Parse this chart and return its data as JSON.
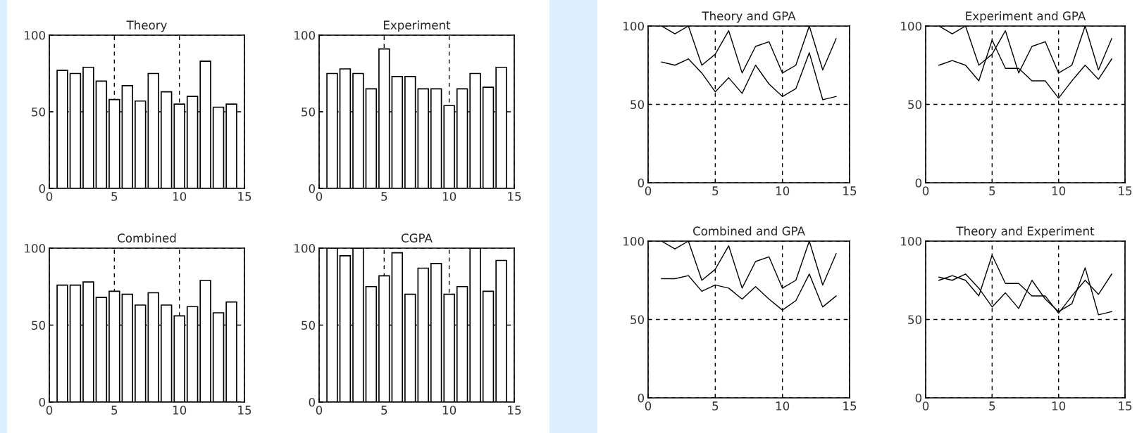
{
  "chart_data": [
    {
      "type": "bar",
      "title": "Theory",
      "x": [
        1,
        2,
        3,
        4,
        5,
        6,
        7,
        8,
        9,
        10,
        11,
        12,
        13,
        14
      ],
      "values": [
        77,
        75,
        79,
        70,
        58,
        67,
        57,
        75,
        63,
        55,
        60,
        83,
        53,
        55
      ],
      "color": "#ffffff",
      "xlim": [
        0,
        15
      ],
      "xticks": [
        0,
        5,
        10,
        15
      ],
      "ylim": [
        0,
        100
      ],
      "yticks": [
        0,
        50,
        100
      ],
      "grid": true
    },
    {
      "type": "bar",
      "title": "Experiment",
      "x": [
        1,
        2,
        3,
        4,
        5,
        6,
        7,
        8,
        9,
        10,
        11,
        12,
        13,
        14
      ],
      "values": [
        75,
        78,
        75,
        65,
        91,
        73,
        73,
        65,
        65,
        54,
        65,
        75,
        66,
        79
      ],
      "color": "#ffffff",
      "xlim": [
        0,
        15
      ],
      "xticks": [
        0,
        5,
        10,
        15
      ],
      "ylim": [
        0,
        100
      ],
      "yticks": [
        0,
        50,
        100
      ],
      "grid": true
    },
    {
      "type": "line",
      "title": "Theory and GPA",
      "x": [
        1,
        2,
        3,
        4,
        5,
        6,
        7,
        8,
        9,
        10,
        11,
        12,
        13,
        14
      ],
      "series": [
        {
          "color": "#000000",
          "values": [
            77,
            75,
            79,
            70,
            58,
            67,
            57,
            75,
            63,
            55,
            60,
            83,
            53,
            55
          ]
        },
        {
          "color": "#000000",
          "values": [
            100,
            95,
            100,
            75,
            82,
            97,
            70,
            87,
            90,
            70,
            75,
            100,
            72,
            92
          ]
        }
      ],
      "xlim": [
        0,
        15
      ],
      "xticks": [
        0,
        5,
        10,
        15
      ],
      "ylim": [
        0,
        100
      ],
      "yticks": [
        0,
        50,
        100
      ],
      "grid": true
    },
    {
      "type": "line",
      "title": "Experiment and GPA",
      "x": [
        1,
        2,
        3,
        4,
        5,
        6,
        7,
        8,
        9,
        10,
        11,
        12,
        13,
        14
      ],
      "series": [
        {
          "color": "#000000",
          "values": [
            75,
            78,
            75,
            65,
            91,
            73,
            73,
            65,
            65,
            54,
            65,
            75,
            66,
            79
          ]
        },
        {
          "color": "#000000",
          "values": [
            100,
            95,
            100,
            75,
            82,
            97,
            70,
            87,
            90,
            70,
            75,
            100,
            72,
            92
          ]
        }
      ],
      "xlim": [
        0,
        15
      ],
      "xticks": [
        0,
        5,
        10,
        15
      ],
      "ylim": [
        0,
        100
      ],
      "yticks": [
        0,
        50,
        100
      ],
      "grid": true
    },
    {
      "type": "bar",
      "title": "Combined",
      "x": [
        1,
        2,
        3,
        4,
        5,
        6,
        7,
        8,
        9,
        10,
        11,
        12,
        13,
        14
      ],
      "values": [
        76,
        76,
        78,
        68,
        72,
        70,
        63,
        71,
        63,
        56,
        62,
        79,
        58,
        65
      ],
      "color": "#ffffff",
      "xlim": [
        0,
        15
      ],
      "xticks": [
        0,
        5,
        10,
        15
      ],
      "ylim": [
        0,
        100
      ],
      "yticks": [
        0,
        50,
        100
      ],
      "grid": true
    },
    {
      "type": "bar",
      "title": "CGPA",
      "x": [
        1,
        2,
        3,
        4,
        5,
        6,
        7,
        8,
        9,
        10,
        11,
        12,
        13,
        14
      ],
      "values": [
        100,
        95,
        100,
        75,
        82,
        97,
        70,
        87,
        90,
        70,
        75,
        100,
        72,
        92
      ],
      "color": "#ffffff",
      "xlim": [
        0,
        15
      ],
      "xticks": [
        0,
        5,
        10,
        15
      ],
      "ylim": [
        0,
        100
      ],
      "yticks": [
        0,
        50,
        100
      ],
      "grid": true
    },
    {
      "type": "line",
      "title": "Combined and GPA",
      "x": [
        1,
        2,
        3,
        4,
        5,
        6,
        7,
        8,
        9,
        10,
        11,
        12,
        13,
        14
      ],
      "series": [
        {
          "color": "#000000",
          "values": [
            76,
            76,
            78,
            68,
            72,
            70,
            63,
            71,
            63,
            56,
            62,
            79,
            58,
            65
          ]
        },
        {
          "color": "#000000",
          "values": [
            100,
            95,
            100,
            75,
            82,
            97,
            70,
            87,
            90,
            70,
            75,
            100,
            72,
            92
          ]
        }
      ],
      "xlim": [
        0,
        15
      ],
      "xticks": [
        0,
        5,
        10,
        15
      ],
      "ylim": [
        0,
        100
      ],
      "yticks": [
        0,
        50,
        100
      ],
      "grid": true
    },
    {
      "type": "line",
      "title": "Theory and Experiment",
      "x": [
        1,
        2,
        3,
        4,
        5,
        6,
        7,
        8,
        9,
        10,
        11,
        12,
        13,
        14
      ],
      "series": [
        {
          "color": "#000000",
          "values": [
            77,
            75,
            79,
            70,
            58,
            67,
            57,
            75,
            63,
            55,
            60,
            83,
            53,
            55
          ]
        },
        {
          "color": "#000000",
          "values": [
            75,
            78,
            75,
            65,
            91,
            73,
            73,
            65,
            65,
            54,
            65,
            75,
            66,
            79
          ]
        }
      ],
      "xlim": [
        0,
        15
      ],
      "xticks": [
        0,
        5,
        10,
        15
      ],
      "ylim": [
        0,
        100
      ],
      "yticks": [
        0,
        50,
        100
      ],
      "grid": true
    }
  ]
}
